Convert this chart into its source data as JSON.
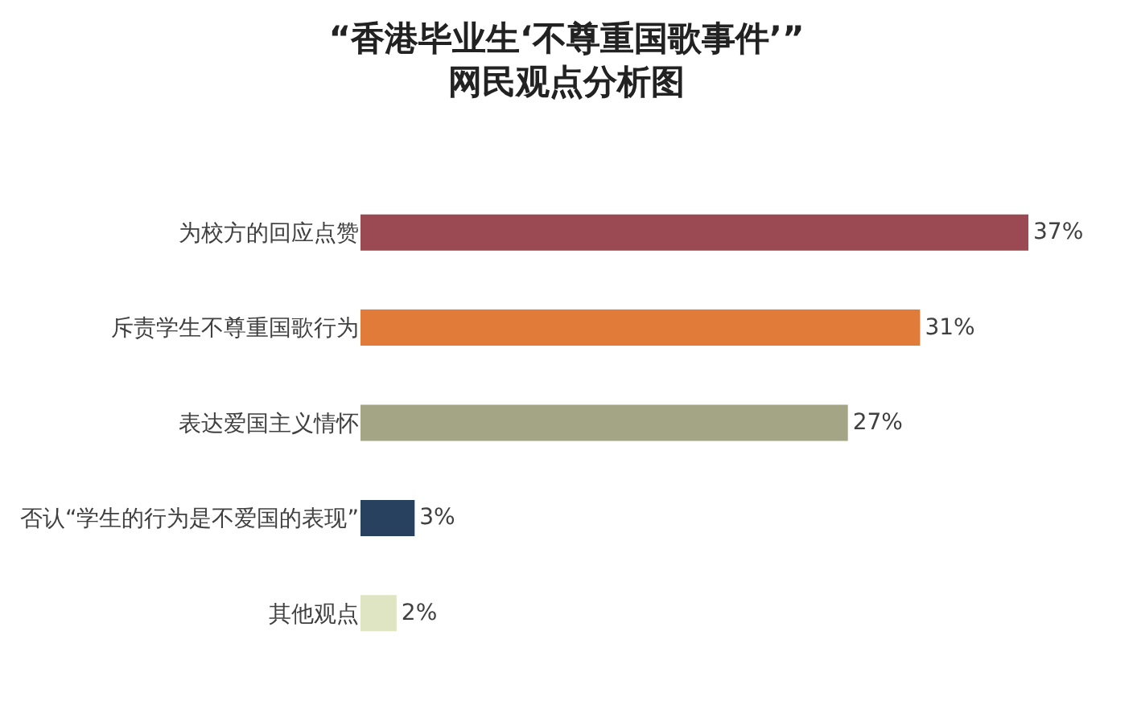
{
  "chart_data": {
    "type": "bar",
    "orientation": "horizontal",
    "title": "“香港毕业生‘不尊重国歌事件’”\n网民观点分析图",
    "categories": [
      "为校方的回应点赞",
      "斥责学生不尊重国歌行为",
      "表达爱国主义情怀",
      "否认“学生的行为是不爱国的表现”",
      "其他观点"
    ],
    "values": [
      37,
      31,
      27,
      3,
      2
    ],
    "value_labels": [
      "37%",
      "31%",
      "27%",
      "3%",
      "2%"
    ],
    "colors": [
      "#9b4a53",
      "#e07b39",
      "#a3a584",
      "#27415e",
      "#dfe5c3"
    ],
    "legend": false
  }
}
